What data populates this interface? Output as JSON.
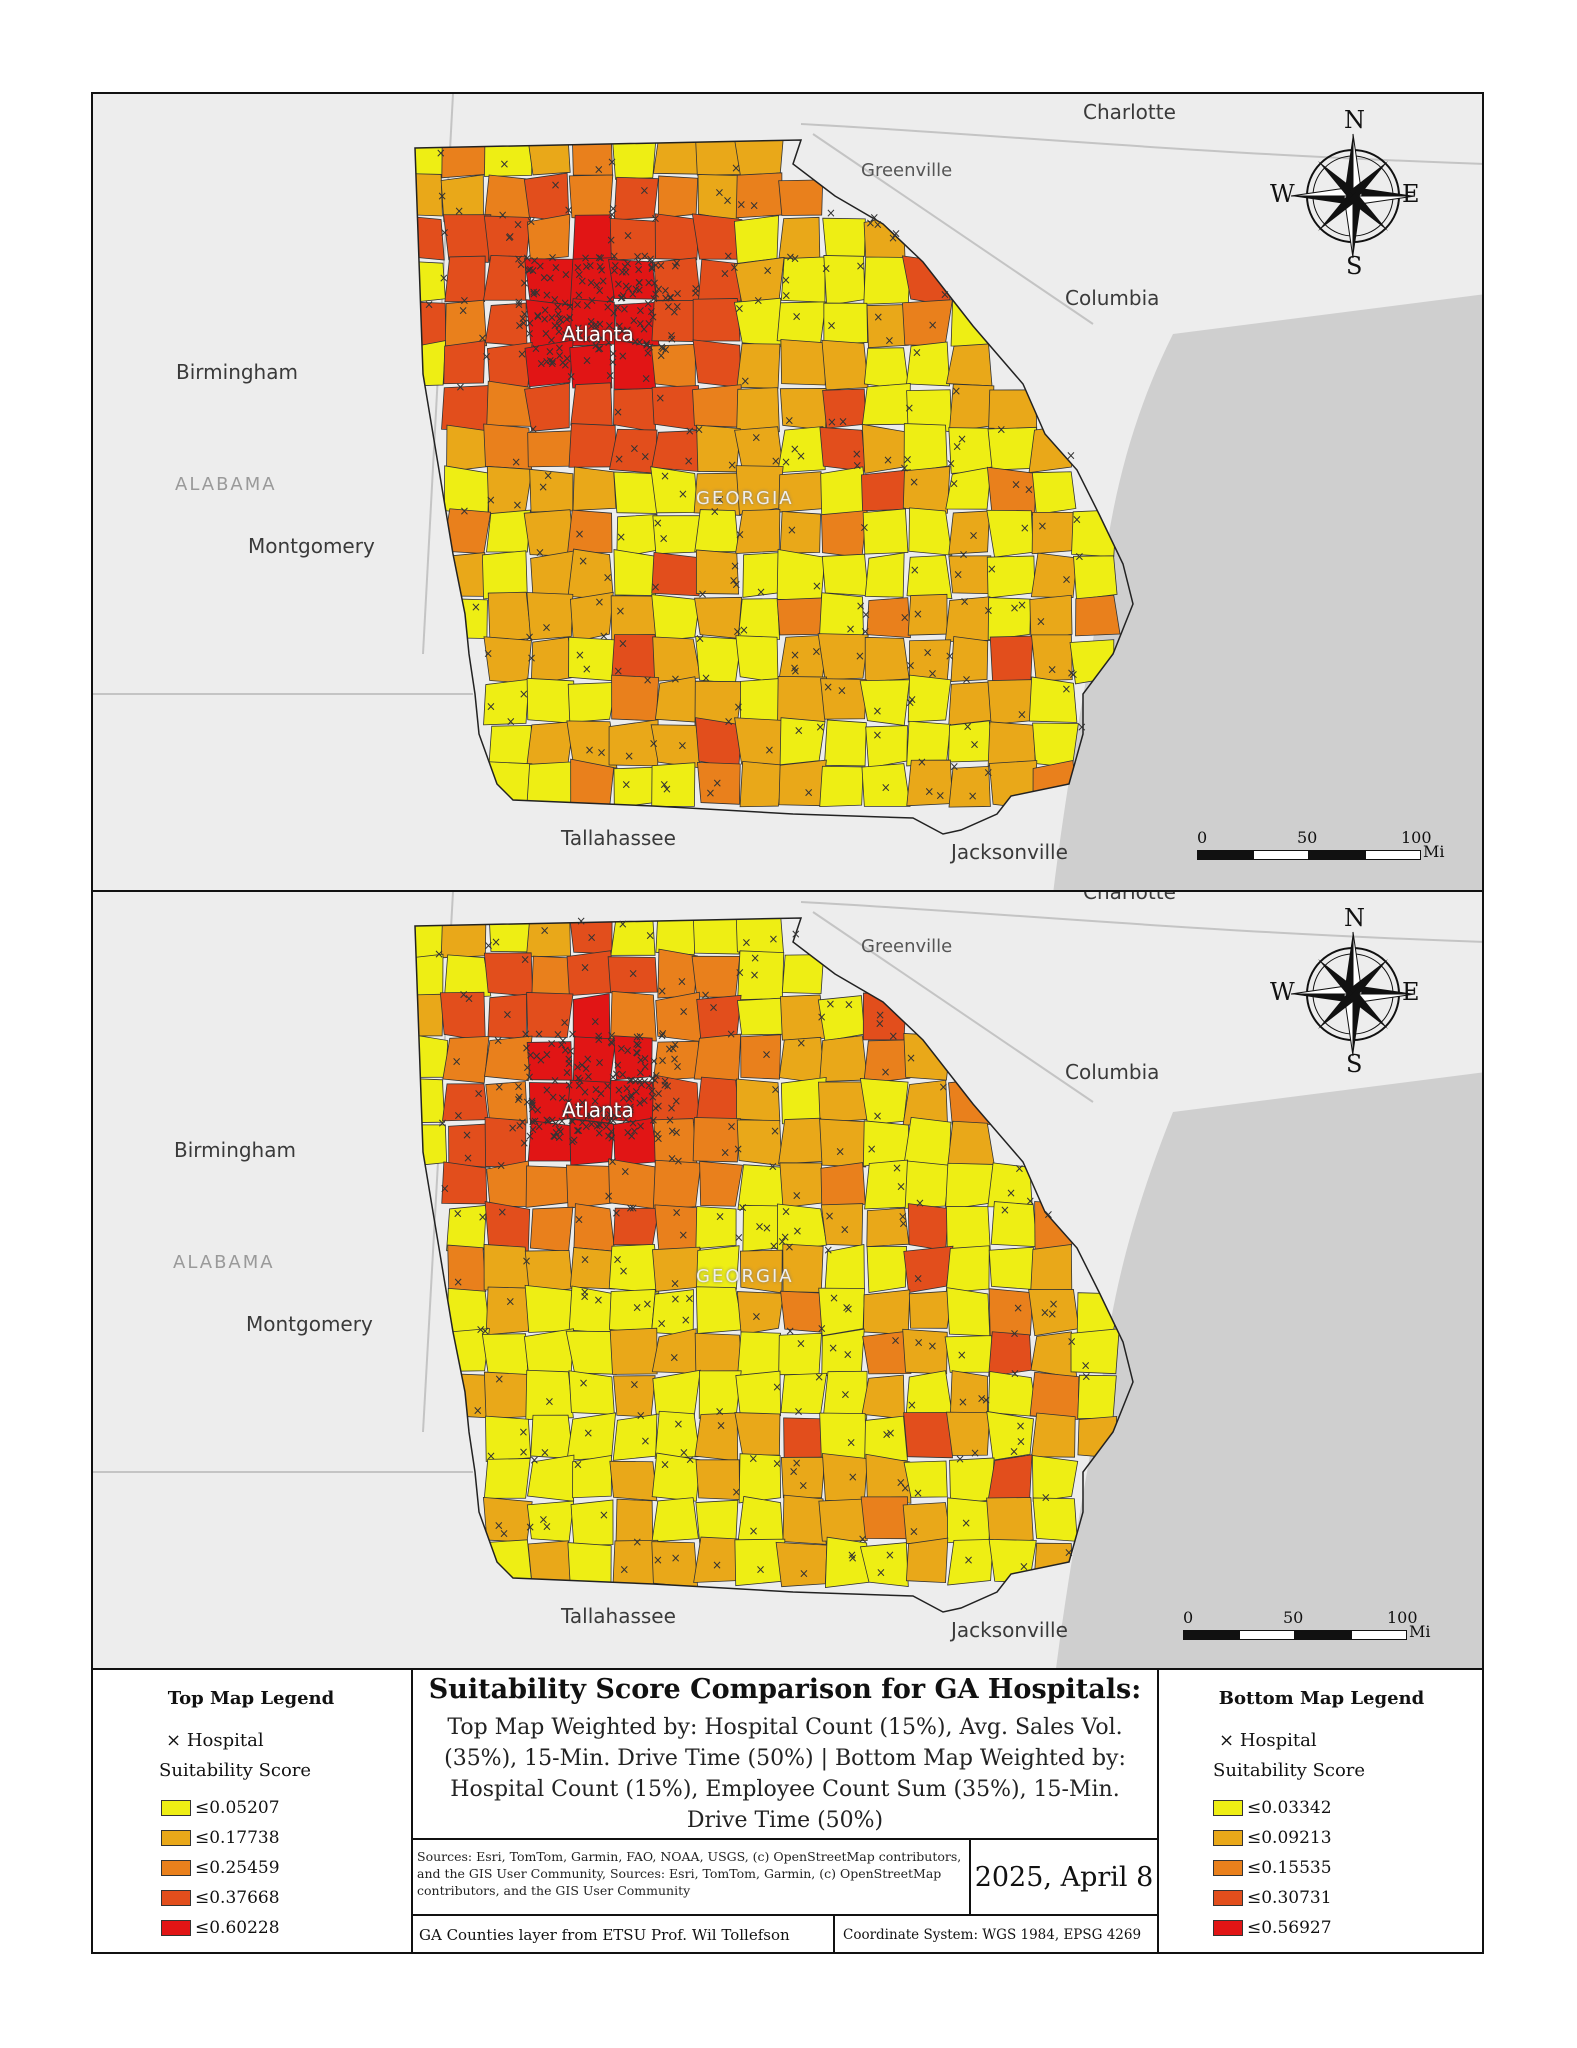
{
  "colors": {
    "class1": "#eeee14",
    "class2": "#e9a819",
    "class3": "#e9801c",
    "class4": "#e24e1c",
    "class5": "#e11515",
    "land": "#ededed",
    "water": "#cfcfcf"
  },
  "maps": {
    "top": {
      "places": {
        "charlotte": "Charlotte",
        "greenville": "Greenville",
        "columbia": "Columbia",
        "birmingham": "Birmingham",
        "alabama": "ALABAMA",
        "montgomery": "Montgomery",
        "atlanta": "Atlanta",
        "georgia": "GEORGIA",
        "tallahassee": "Tallahassee",
        "jacksonville": "Jacksonville"
      },
      "compass": {
        "n": "N",
        "e": "E",
        "s": "S",
        "w": "W"
      },
      "scale": {
        "t0": "0",
        "t1": "50",
        "t2": "100",
        "unit": "Mi"
      }
    },
    "bottom": {
      "places": {
        "charlotte": "Charlotte",
        "greenville": "Greenville",
        "columbia": "Columbia",
        "birmingham": "Birmingham",
        "alabama": "ALABAMA",
        "montgomery": "Montgomery",
        "atlanta": "Atlanta",
        "georgia": "GEORGIA",
        "tallahassee": "Tallahassee",
        "jacksonville": "Jacksonville"
      },
      "compass": {
        "n": "N",
        "e": "E",
        "s": "S",
        "w": "W"
      },
      "scale": {
        "t0": "0",
        "t1": "50",
        "t2": "100",
        "unit": "Mi"
      }
    }
  },
  "legend_top": {
    "title": "Top Map Legend",
    "hospital": "Hospital",
    "score_label": "Suitability Score",
    "classes": [
      "≤0.05207",
      "≤0.17738",
      "≤0.25459",
      "≤0.37668",
      "≤0.60228"
    ]
  },
  "legend_bottom": {
    "title": "Bottom Map Legend",
    "hospital": "Hospital",
    "score_label": "Suitability Score",
    "classes": [
      "≤0.03342",
      "≤0.09213",
      "≤0.15535",
      "≤0.30731",
      "≤0.56927"
    ]
  },
  "title_block": {
    "title": "Suitability Score Comparison for GA Hospitals:",
    "subtitle": "Top Map Weighted by: Hospital Count (15%), Avg. Sales Vol. (35%), 15-Min. Drive Time (50%) | Bottom Map Weighted by: Hospital Count (15%), Employee Count Sum (35%), 15-Min. Drive Time (50%)",
    "sources": "Sources: Esri, TomTom, Garmin, FAO, NOAA, USGS, (c) OpenStreetMap contributors, and the GIS User Community, Sources: Esri, TomTom, Garmin, (c) OpenStreetMap contributors, and the GIS User Community",
    "date": "2025, April 8",
    "credit": "GA Counties layer from ETSU Prof. Wil Tollefson",
    "crs": "Coordinate System: WGS 1984, EPSG 4269"
  }
}
